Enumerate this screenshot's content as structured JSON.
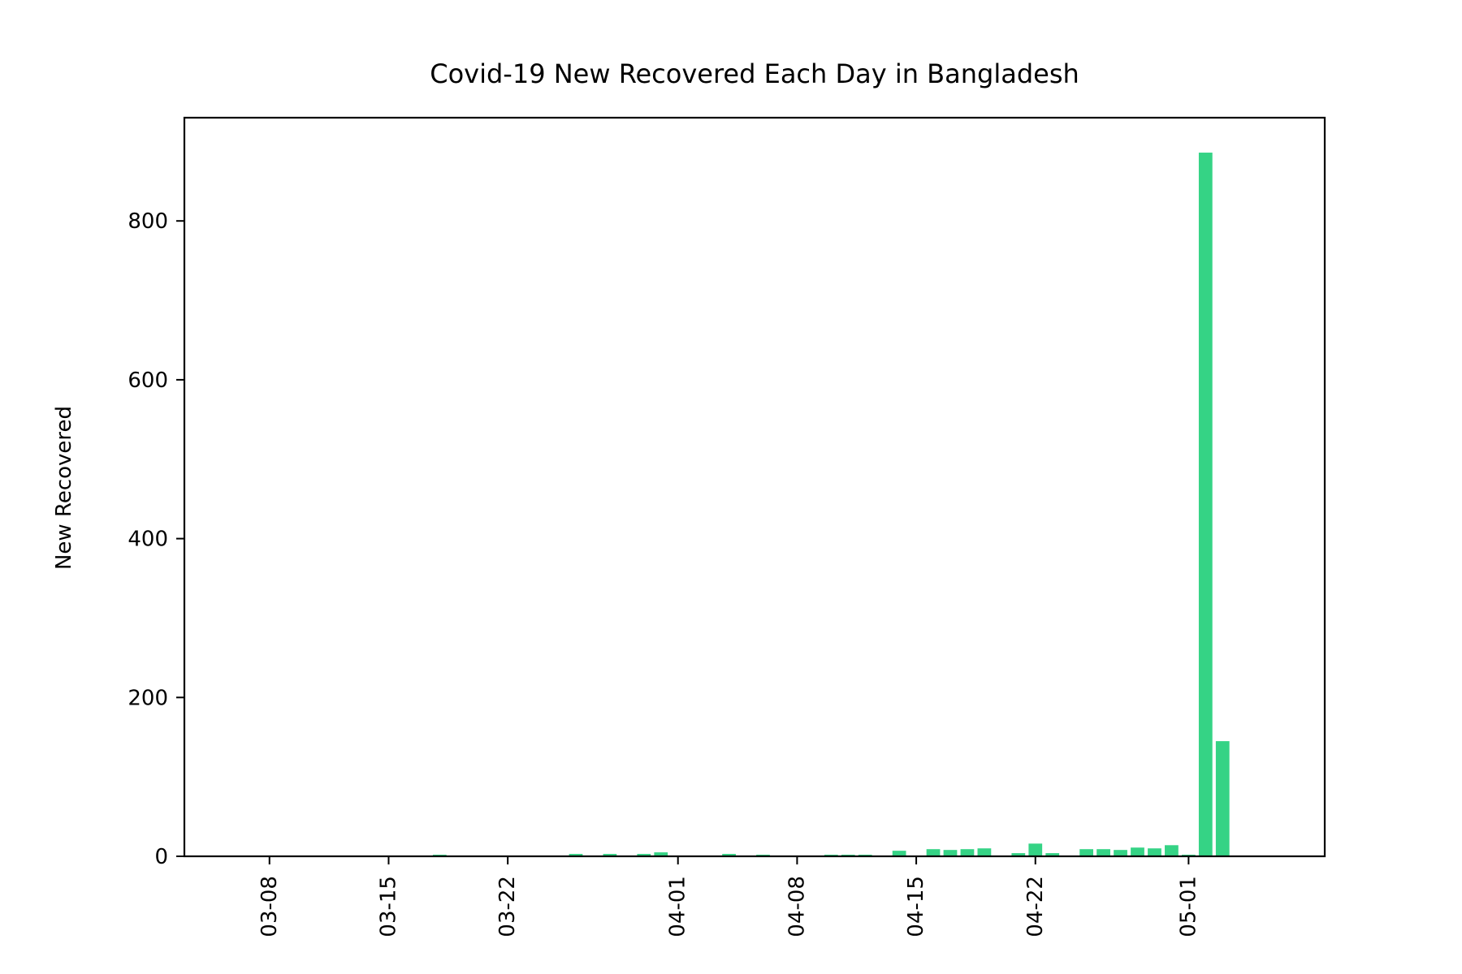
{
  "chart_data": {
    "type": "bar",
    "title": "Covid-19 New Recovered Each Day in Bangladesh",
    "xlabel": "",
    "ylabel": "New Recovered",
    "bar_color": "#35d385",
    "x_type": "date",
    "year": "2020",
    "xlim": [
      "2020-03-03",
      "2020-05-09"
    ],
    "ylim": [
      0,
      930
    ],
    "yticks": [
      0,
      200,
      400,
      600,
      800
    ],
    "xticks": [
      "2020-03-08",
      "2020-03-15",
      "2020-03-22",
      "2020-04-01",
      "2020-04-08",
      "2020-04-15",
      "2020-04-22",
      "2020-05-01"
    ],
    "xtick_labels": [
      "03-08",
      "03-15",
      "03-22",
      "04-01",
      "04-08",
      "04-15",
      "04-22",
      "05-01"
    ],
    "grid": false,
    "legend": "none",
    "dates": [
      "2020-03-08",
      "2020-03-09",
      "2020-03-10",
      "2020-03-11",
      "2020-03-12",
      "2020-03-13",
      "2020-03-14",
      "2020-03-15",
      "2020-03-16",
      "2020-03-17",
      "2020-03-18",
      "2020-03-19",
      "2020-03-20",
      "2020-03-21",
      "2020-03-22",
      "2020-03-23",
      "2020-03-24",
      "2020-03-25",
      "2020-03-26",
      "2020-03-27",
      "2020-03-28",
      "2020-03-29",
      "2020-03-30",
      "2020-03-31",
      "2020-04-01",
      "2020-04-02",
      "2020-04-03",
      "2020-04-04",
      "2020-04-05",
      "2020-04-06",
      "2020-04-07",
      "2020-04-08",
      "2020-04-09",
      "2020-04-10",
      "2020-04-11",
      "2020-04-12",
      "2020-04-13",
      "2020-04-14",
      "2020-04-15",
      "2020-04-16",
      "2020-04-17",
      "2020-04-18",
      "2020-04-19",
      "2020-04-20",
      "2020-04-21",
      "2020-04-22",
      "2020-04-23",
      "2020-04-24",
      "2020-04-25",
      "2020-04-26",
      "2020-04-27",
      "2020-04-28",
      "2020-04-29",
      "2020-04-30",
      "2020-05-01",
      "2020-05-02",
      "2020-05-03",
      "2020-05-04",
      "2020-05-05"
    ],
    "values": [
      0,
      0,
      0,
      0,
      0,
      0,
      0,
      0,
      0,
      0,
      2,
      0,
      0,
      0,
      0,
      0,
      1,
      1,
      3,
      0,
      3,
      0,
      3,
      5,
      0,
      0,
      0,
      3,
      0,
      2,
      0,
      0,
      0,
      2,
      2,
      2,
      0,
      7,
      0,
      9,
      8,
      9,
      10,
      1,
      4,
      16,
      4,
      0,
      9,
      9,
      8,
      11,
      10,
      14,
      2,
      886,
      145,
      0,
      0
    ]
  }
}
